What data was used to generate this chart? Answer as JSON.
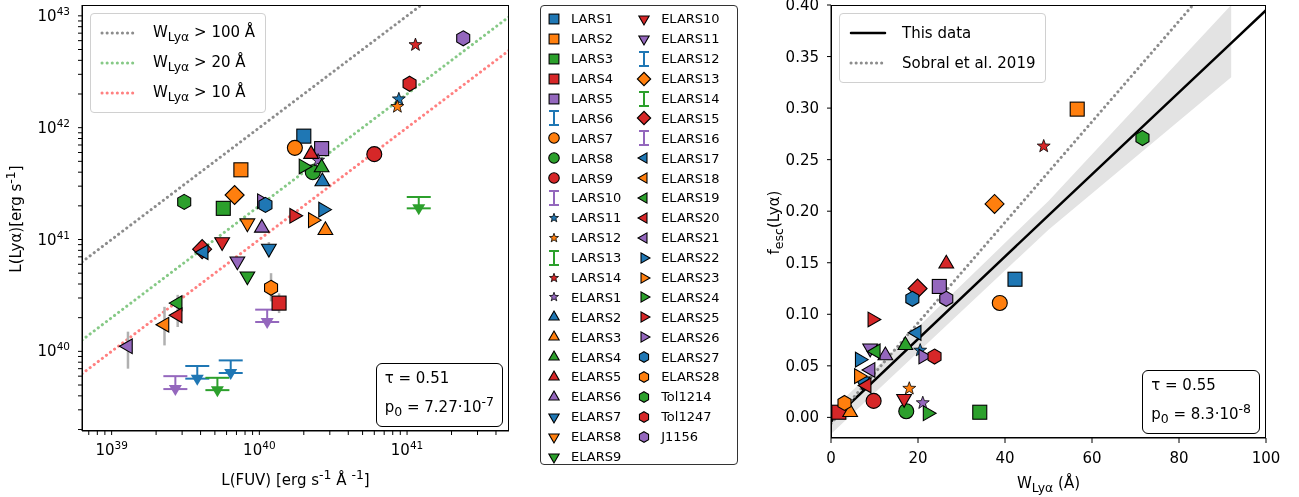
{
  "chart_data": [
    {
      "type": "scatter",
      "log": "xy",
      "legend": "right",
      "xlabel": "L(FUV) [erg s$^{-1}$ Å $^{-1}$]",
      "ylabel": "L(Lyα)[erg s$^{-1}$]",
      "xlim": [
        6.3e+38,
        4.9e+41
      ],
      "ylim": [
        1.94e+39,
        1.25e+43
      ],
      "xticks": [
        {
          "value": 7e+38,
          "label": null
        },
        {
          "value": 8e+38,
          "label": null
        },
        {
          "value": 9e+38,
          "label": null
        },
        {
          "value": 1e+39,
          "label": "10$^{39}$"
        },
        {
          "value": 2e+39,
          "label": null
        },
        {
          "value": 3e+39,
          "label": null
        },
        {
          "value": 4e+39,
          "label": null
        },
        {
          "value": 5e+39,
          "label": null
        },
        {
          "value": 6e+39,
          "label": null
        },
        {
          "value": 7e+39,
          "label": null
        },
        {
          "value": 8e+39,
          "label": null
        },
        {
          "value": 9e+39,
          "label": null
        },
        {
          "value": 1e+40,
          "label": "10$^{40}$"
        },
        {
          "value": 2e+40,
          "label": null
        },
        {
          "value": 3e+40,
          "label": null
        },
        {
          "value": 4e+40,
          "label": null
        },
        {
          "value": 5e+40,
          "label": null
        },
        {
          "value": 6e+40,
          "label": null
        },
        {
          "value": 7e+40,
          "label": null
        },
        {
          "value": 8e+40,
          "label": null
        },
        {
          "value": 9e+40,
          "label": null
        },
        {
          "value": 1e+41,
          "label": "10$^{41}$"
        },
        {
          "value": 2e+41,
          "label": null
        },
        {
          "value": 3e+41,
          "label": null
        },
        {
          "value": 4e+41,
          "label": null
        }
      ],
      "yticks": [
        {
          "value": 2e+39,
          "label": null
        },
        {
          "value": 3e+39,
          "label": null
        },
        {
          "value": 4e+39,
          "label": null
        },
        {
          "value": 5e+39,
          "label": null
        },
        {
          "value": 6e+39,
          "label": null
        },
        {
          "value": 7e+39,
          "label": null
        },
        {
          "value": 8e+39,
          "label": null
        },
        {
          "value": 9e+39,
          "label": null
        },
        {
          "value": 1e+40,
          "label": "10$^{40}$"
        },
        {
          "value": 2e+40,
          "label": null
        },
        {
          "value": 3e+40,
          "label": null
        },
        {
          "value": 4e+40,
          "label": null
        },
        {
          "value": 5e+40,
          "label": null
        },
        {
          "value": 6e+40,
          "label": null
        },
        {
          "value": 7e+40,
          "label": null
        },
        {
          "value": 8e+40,
          "label": null
        },
        {
          "value": 9e+40,
          "label": null
        },
        {
          "value": 1e+41,
          "label": "10$^{41}$"
        },
        {
          "value": 2e+41,
          "label": null
        },
        {
          "value": 3e+41,
          "label": null
        },
        {
          "value": 4e+41,
          "label": null
        },
        {
          "value": 5e+41,
          "label": null
        },
        {
          "value": 6e+41,
          "label": null
        },
        {
          "value": 7e+41,
          "label": null
        },
        {
          "value": 8e+41,
          "label": null
        },
        {
          "value": 9e+41,
          "label": null
        },
        {
          "value": 1e+42,
          "label": "10$^{42}$"
        },
        {
          "value": 2e+42,
          "label": null
        },
        {
          "value": 3e+42,
          "label": null
        },
        {
          "value": 4e+42,
          "label": null
        },
        {
          "value": 5e+42,
          "label": null
        },
        {
          "value": 6e+42,
          "label": null
        },
        {
          "value": 7e+42,
          "label": null
        },
        {
          "value": 8e+42,
          "label": null
        },
        {
          "value": 9e+42,
          "label": null
        },
        {
          "value": 1e+43,
          "label": "10$^{43}$"
        }
      ],
      "annotations": [
        "τ = 0.51",
        "p$_{0}$ =  7.27·10$^{-7}$"
      ],
      "series": [
        {
          "type": "line",
          "name": "W$_{Lyα}$ > 100 Å",
          "color": "#8c8c8c",
          "line_style": "dotted",
          "x": [
            6.3e+38,
            1.25e+41
          ],
          "values": [
            6.3e+40,
            1.25e+43
          ]
        },
        {
          "type": "line",
          "name": "W$_{Lyα}$ > 20 Å",
          "color": "#86c986",
          "line_style": "dotted",
          "x": [
            6.3e+38,
            4.9e+41
          ],
          "values": [
            1.26e+40,
            9.8e+42
          ]
        },
        {
          "type": "line",
          "name": "W$_{Lyα}$ > 10 Å",
          "color": "#ff8080",
          "line_style": "dotted",
          "x": [
            6.3e+38,
            4.9e+41
          ],
          "values": [
            6.3e+39,
            4.9e+42
          ]
        },
        {
          "name": "LARS1",
          "color": "#1f77b4",
          "marker": "square",
          "x": [
            2e+40
          ],
          "values": [
            8.4e+41
          ]
        },
        {
          "name": "LARS2",
          "color": "#ff7f0e",
          "marker": "square",
          "x": [
            7.5e+39
          ],
          "values": [
            4.2e+41
          ]
        },
        {
          "name": "LARS3",
          "color": "#2ca02c",
          "marker": "square",
          "x": [
            5.7e+39
          ],
          "values": [
            1.9e+41
          ]
        },
        {
          "name": "LARS4",
          "color": "#d62728",
          "marker": "square",
          "x": [
            1.36e+40
          ],
          "values": [
            2.7e+40
          ],
          "errors": [
            [
              2.2e+40,
              3.3e+40
            ]
          ]
        },
        {
          "name": "LARS5",
          "color": "#9467bd",
          "marker": "square",
          "x": [
            2.64e+40
          ],
          "values": [
            6.5e+41
          ]
        },
        {
          "name": "LARS6",
          "color": "#1f77b4",
          "marker": "triangle",
          "x": [
            3.8e+39
          ],
          "values": [
            5.7e+39
          ],
          "errors": [
            [
              5.7e+39,
              7.4e+39
            ]
          ]
        },
        {
          "name": "LARS7",
          "color": "#ff7f0e",
          "marker": "circle",
          "x": [
            1.74e+40
          ],
          "values": [
            6.6e+41
          ]
        },
        {
          "name": "LARS8",
          "color": "#2ca02c",
          "marker": "circle",
          "x": [
            2.3e+40
          ],
          "values": [
            4e+41
          ]
        },
        {
          "name": "LARS9",
          "color": "#d62728",
          "marker": "circle",
          "x": [
            6e+40
          ],
          "values": [
            5.8e+41
          ]
        },
        {
          "name": "LARS10",
          "color": "#9467bd",
          "marker": "triangle",
          "x": [
            2.7e+39
          ],
          "values": [
            4.6e+39
          ],
          "errors": [
            [
              4.6e+39,
              6e+39
            ]
          ]
        },
        {
          "name": "LARS11",
          "color": "#1f77b4",
          "marker": "star",
          "x": [
            8.8e+40
          ],
          "values": [
            1.8e+42
          ]
        },
        {
          "name": "LARS12",
          "color": "#ff7f0e",
          "marker": "star",
          "x": [
            8.6e+40
          ],
          "values": [
            1.54e+42
          ]
        },
        {
          "name": "LARS13",
          "color": "#2ca02c",
          "marker": "triangle",
          "x": [
            5.2e+39
          ],
          "values": [
            4.5e+39
          ],
          "errors": [
            [
              4.5e+39,
              5.8e+39
            ]
          ]
        },
        {
          "name": "LARS14",
          "color": "#d62728",
          "marker": "star",
          "x": [
            1.14e+41
          ],
          "values": [
            5.5e+42
          ]
        },
        {
          "name": "ELARS1",
          "color": "#9467bd",
          "marker": "star",
          "x": [
            2.5e+40
          ],
          "values": [
            5.1e+41
          ]
        },
        {
          "name": "ELARS2",
          "color": "#1f77b4",
          "marker": "triangle-up",
          "x": [
            2.67e+40
          ],
          "values": [
            3.3e+41
          ]
        },
        {
          "name": "ELARS3",
          "color": "#ff7f0e",
          "marker": "triangle-up",
          "x": [
            2.8e+40
          ],
          "values": [
            1.21e+41
          ]
        },
        {
          "name": "ELARS4",
          "color": "#2ca02c",
          "marker": "triangle-up",
          "x": [
            2.64e+40
          ],
          "values": [
            4.4e+41
          ]
        },
        {
          "name": "ELARS5",
          "color": "#d62728",
          "marker": "triangle-up",
          "x": [
            2.24e+40
          ],
          "values": [
            5.8e+41
          ]
        },
        {
          "name": "ELARS6",
          "color": "#9467bd",
          "marker": "triangle-up",
          "x": [
            1.04e+40
          ],
          "values": [
            1.27e+41
          ]
        },
        {
          "name": "ELARS7",
          "color": "#1f77b4",
          "marker": "triangle-down",
          "x": [
            1.16e+40
          ],
          "values": [
            8.3e+40
          ],
          "errors": [
            [
              7e+40,
              9.5e+40
            ]
          ]
        },
        {
          "name": "ELARS8",
          "color": "#ff7f0e",
          "marker": "triangle-down",
          "x": [
            8.3e+39
          ],
          "values": [
            1.4e+41
          ]
        },
        {
          "name": "ELARS9",
          "color": "#2ca02c",
          "marker": "triangle-down",
          "x": [
            8.3e+39
          ],
          "values": [
            4.7e+40
          ]
        },
        {
          "name": "ELARS10",
          "color": "#d62728",
          "marker": "triangle-down",
          "x": [
            5.6e+39
          ],
          "values": [
            9.5e+40
          ]
        },
        {
          "name": "ELARS11",
          "color": "#9467bd",
          "marker": "triangle-down",
          "x": [
            7.1e+39
          ],
          "values": [
            6.4e+40
          ]
        },
        {
          "name": "ELARS12",
          "color": "#1f77b4",
          "marker": "triangle",
          "x": [
            6.4e+39
          ],
          "values": [
            6.4e+39
          ],
          "errors": [
            [
              6.4e+39,
              8.3e+39
            ]
          ]
        },
        {
          "name": "ELARS13",
          "color": "#ff7f0e",
          "marker": "diamond",
          "x": [
            6.8e+39
          ],
          "values": [
            2.5e+41
          ]
        },
        {
          "name": "ELARS14",
          "color": "#2ca02c",
          "marker": "triangle",
          "x": [
            1.2e+41
          ],
          "values": [
            1.9e+41
          ],
          "errors": [
            [
              1.9e+41,
              2.4e+41
            ]
          ]
        },
        {
          "name": "ELARS15",
          "color": "#d62728",
          "marker": "diamond",
          "x": [
            4.1e+39
          ],
          "values": [
            8.2e+40
          ]
        },
        {
          "name": "ELARS16",
          "color": "#9467bd",
          "marker": "triangle",
          "x": [
            1.13e+40
          ],
          "values": [
            1.83e+40
          ],
          "errors": [
            [
              1.83e+40,
              2.36e+40
            ]
          ]
        },
        {
          "name": "ELARS17",
          "color": "#1f77b4",
          "marker": "triangle-left",
          "x": [
            4.2e+39
          ],
          "values": [
            7.7e+40
          ]
        },
        {
          "name": "ELARS18",
          "color": "#ff7f0e",
          "marker": "triangle-left",
          "x": [
            2.28e+39
          ],
          "values": [
            1.73e+40
          ],
          "errors": [
            [
              1.13e+40,
              2.5e+40
            ]
          ]
        },
        {
          "name": "ELARS19",
          "color": "#2ca02c",
          "marker": "triangle-left",
          "x": [
            2.8e+39
          ],
          "values": [
            2.7e+40
          ]
        },
        {
          "name": "ELARS20",
          "color": "#d62728",
          "marker": "triangle-left",
          "x": [
            2.8e+39
          ],
          "values": [
            2.1e+40
          ],
          "errors": [
            [
              1.65e+40,
              3.2e+40
            ]
          ]
        },
        {
          "name": "ELARS21",
          "color": "#9467bd",
          "marker": "triangle-left",
          "x": [
            1.29e+39
          ],
          "values": [
            1.11e+40
          ],
          "errors": [
            [
              7e+39,
              1.5e+40
            ]
          ]
        },
        {
          "name": "ELARS22",
          "color": "#1f77b4",
          "marker": "triangle-right",
          "x": [
            2.7e+40
          ],
          "values": [
            1.85e+41
          ]
        },
        {
          "name": "ELARS23",
          "color": "#ff7f0e",
          "marker": "triangle-right",
          "x": [
            2.3e+40
          ],
          "values": [
            1.49e+41
          ]
        },
        {
          "name": "ELARS24",
          "color": "#2ca02c",
          "marker": "triangle-right",
          "x": [
            1.99e+40
          ],
          "values": [
            4.5e+41
          ]
        },
        {
          "name": "ELARS25",
          "color": "#d62728",
          "marker": "triangle-right",
          "x": [
            1.72e+40
          ],
          "values": [
            1.63e+41
          ]
        },
        {
          "name": "ELARS26",
          "color": "#9467bd",
          "marker": "triangle-right",
          "x": [
            1.04e+40
          ],
          "values": [
            2.2e+41
          ]
        },
        {
          "name": "ELARS27",
          "color": "#1f77b4",
          "x": [
            1.1e+40
          ],
          "values": [
            2.04e+41
          ]
        },
        {
          "name": "ELARS28",
          "color": "#ff7f0e",
          "x": [
            1.2e+40
          ],
          "values": [
            3.7e+40
          ],
          "errors": [
            [
              2.8e+40,
              5e+40
            ]
          ]
        },
        {
          "name": "Tol1214",
          "color": "#2ca02c",
          "x": [
            3.1e+39
          ],
          "values": [
            2.17e+41
          ]
        },
        {
          "name": "Tol1247",
          "color": "#d62728",
          "x": [
            1.04e+41
          ],
          "values": [
            2.47e+42
          ]
        },
        {
          "name": "J1156",
          "color": "#9467bd",
          "x": [
            2.4e+41
          ],
          "values": [
            6.3e+42
          ]
        }
      ]
    },
    {
      "type": "scatter",
      "legend": "top left",
      "xlabel": "W$_{Lyα}$ (Å)",
      "ylabel": "f$_{esc}$(Lyα)",
      "xlim": [
        0,
        100
      ],
      "ylim": [
        -0.02,
        0.4
      ],
      "xticks": [
        0,
        20,
        40,
        60,
        80,
        100
      ],
      "yticks": [
        {
          "value": 0,
          "label": "0.00"
        },
        {
          "value": 0.05,
          "label": "0.05"
        },
        {
          "value": 0.1,
          "label": "0.10"
        },
        {
          "value": 0.15,
          "label": "0.15"
        },
        {
          "value": 0.2,
          "label": "0.20"
        },
        {
          "value": 0.25,
          "label": "0.25"
        },
        {
          "value": 0.3,
          "label": "0.30"
        },
        {
          "value": 0.35,
          "label": "0.35"
        },
        {
          "value": 0.4,
          "label": "0.40"
        }
      ],
      "annotations": [
        "τ = 0.55",
        "p$_{0}$ =  8.3·10$^{-8}$"
      ],
      "series": [
        {
          "type": "line",
          "name": "This data",
          "color": "#000000",
          "line_style": "solid",
          "x": [
            0,
            50,
            92,
            100
          ],
          "values": [
            -0.004,
            0.196,
            0.363,
            0.395
          ],
          "lower": [
            -0.016,
            0.182,
            0.33,
            null
          ],
          "upper": [
            0.006,
            0.21,
            0.4,
            null
          ]
        },
        {
          "type": "line",
          "name": "Sobral et al. 2019",
          "color": "#8c8c8c",
          "line_style": "dotted",
          "x": [
            0,
            83.2
          ],
          "values": [
            -0.006,
            0.4
          ]
        },
        {
          "color": "#1f77b4",
          "marker": "square",
          "x": [
            42.3
          ],
          "values": [
            0.134
          ]
        },
        {
          "color": "#ff7f0e",
          "marker": "square",
          "x": [
            56.6
          ],
          "values": [
            0.299
          ]
        },
        {
          "color": "#2ca02c",
          "marker": "square",
          "x": [
            34.2
          ],
          "values": [
            0.005
          ]
        },
        {
          "color": "#d62728",
          "marker": "square",
          "x": [
            1.8
          ],
          "values": [
            0.005
          ]
        },
        {
          "color": "#9467bd",
          "marker": "square",
          "x": [
            24.9
          ],
          "values": [
            0.127
          ]
        },
        {
          "color": "#ff7f0e",
          "marker": "circle",
          "x": [
            38.8
          ],
          "values": [
            0.111
          ]
        },
        {
          "color": "#2ca02c",
          "marker": "circle",
          "x": [
            17.3
          ],
          "values": [
            0.006
          ]
        },
        {
          "color": "#d62728",
          "marker": "circle",
          "x": [
            9.8
          ],
          "values": [
            0.016
          ]
        },
        {
          "color": "#1f77b4",
          "marker": "star",
          "x": [
            20.5
          ],
          "values": [
            0.065
          ]
        },
        {
          "color": "#ff7f0e",
          "marker": "star",
          "x": [
            18.0
          ],
          "values": [
            0.028
          ]
        },
        {
          "color": "#d62728",
          "marker": "star",
          "x": [
            48.9
          ],
          "values": [
            0.263
          ]
        },
        {
          "color": "#9467bd",
          "marker": "star",
          "x": [
            21.1
          ],
          "values": [
            0.014
          ]
        },
        {
          "color": "#ff7f0e",
          "marker": "triangle-up",
          "x": [
            4.4
          ],
          "values": [
            0.005
          ]
        },
        {
          "color": "#2ca02c",
          "marker": "triangle-up",
          "x": [
            17.1
          ],
          "values": [
            0.07
          ]
        },
        {
          "color": "#d62728",
          "marker": "triangle-up",
          "x": [
            26.5
          ],
          "values": [
            0.149
          ]
        },
        {
          "color": "#9467bd",
          "marker": "triangle-up",
          "x": [
            12.5
          ],
          "values": [
            0.06
          ]
        },
        {
          "color": "#1f77b4",
          "marker": "triangle-down",
          "x": [
            7.2
          ],
          "values": [
            0.035
          ]
        },
        {
          "color": "#d62728",
          "marker": "triangle-down",
          "x": [
            16.8
          ],
          "values": [
            0.018
          ]
        },
        {
          "color": "#9467bd",
          "marker": "triangle-down",
          "x": [
            9.0
          ],
          "values": [
            0.067
          ]
        },
        {
          "color": "#ff7f0e",
          "marker": "diamond",
          "x": [
            37.6
          ],
          "values": [
            0.207
          ]
        },
        {
          "color": "#d62728",
          "marker": "diamond",
          "x": [
            19.9
          ],
          "values": [
            0.125
          ]
        },
        {
          "color": "#1f77b4",
          "marker": "triangle-left",
          "x": [
            19.7
          ],
          "values": [
            0.082
          ]
        },
        {
          "color": "#2ca02c",
          "marker": "triangle-left",
          "x": [
            10.3
          ],
          "values": [
            0.064
          ]
        },
        {
          "color": "#d62728",
          "marker": "triangle-left",
          "x": [
            8.2
          ],
          "values": [
            0.031
          ]
        },
        {
          "color": "#9467bd",
          "marker": "triangle-left",
          "x": [
            9.1
          ],
          "values": [
            0.046
          ]
        },
        {
          "color": "#1f77b4",
          "marker": "triangle-right",
          "x": [
            6.6
          ],
          "values": [
            0.056
          ]
        },
        {
          "color": "#ff7f0e",
          "marker": "triangle-right",
          "x": [
            6.4
          ],
          "values": [
            0.04
          ]
        },
        {
          "color": "#2ca02c",
          "marker": "triangle-right",
          "x": [
            22.2
          ],
          "values": [
            0.004
          ]
        },
        {
          "color": "#d62728",
          "marker": "triangle-right",
          "x": [
            9.5
          ],
          "values": [
            0.095
          ]
        },
        {
          "color": "#9467bd",
          "marker": "triangle-right",
          "x": [
            21.2
          ],
          "values": [
            0.059
          ]
        },
        {
          "color": "#1f77b4",
          "x": [
            18.7
          ],
          "values": [
            0.115
          ]
        },
        {
          "color": "#ff7f0e",
          "x": [
            3.1
          ],
          "values": [
            0.014
          ]
        },
        {
          "color": "#2ca02c",
          "x": [
            71.6
          ],
          "values": [
            0.271
          ]
        },
        {
          "color": "#d62728",
          "x": [
            23.8
          ],
          "values": [
            0.059
          ]
        },
        {
          "color": "#9467bd",
          "x": [
            26.5
          ],
          "values": [
            0.115
          ]
        }
      ]
    }
  ]
}
